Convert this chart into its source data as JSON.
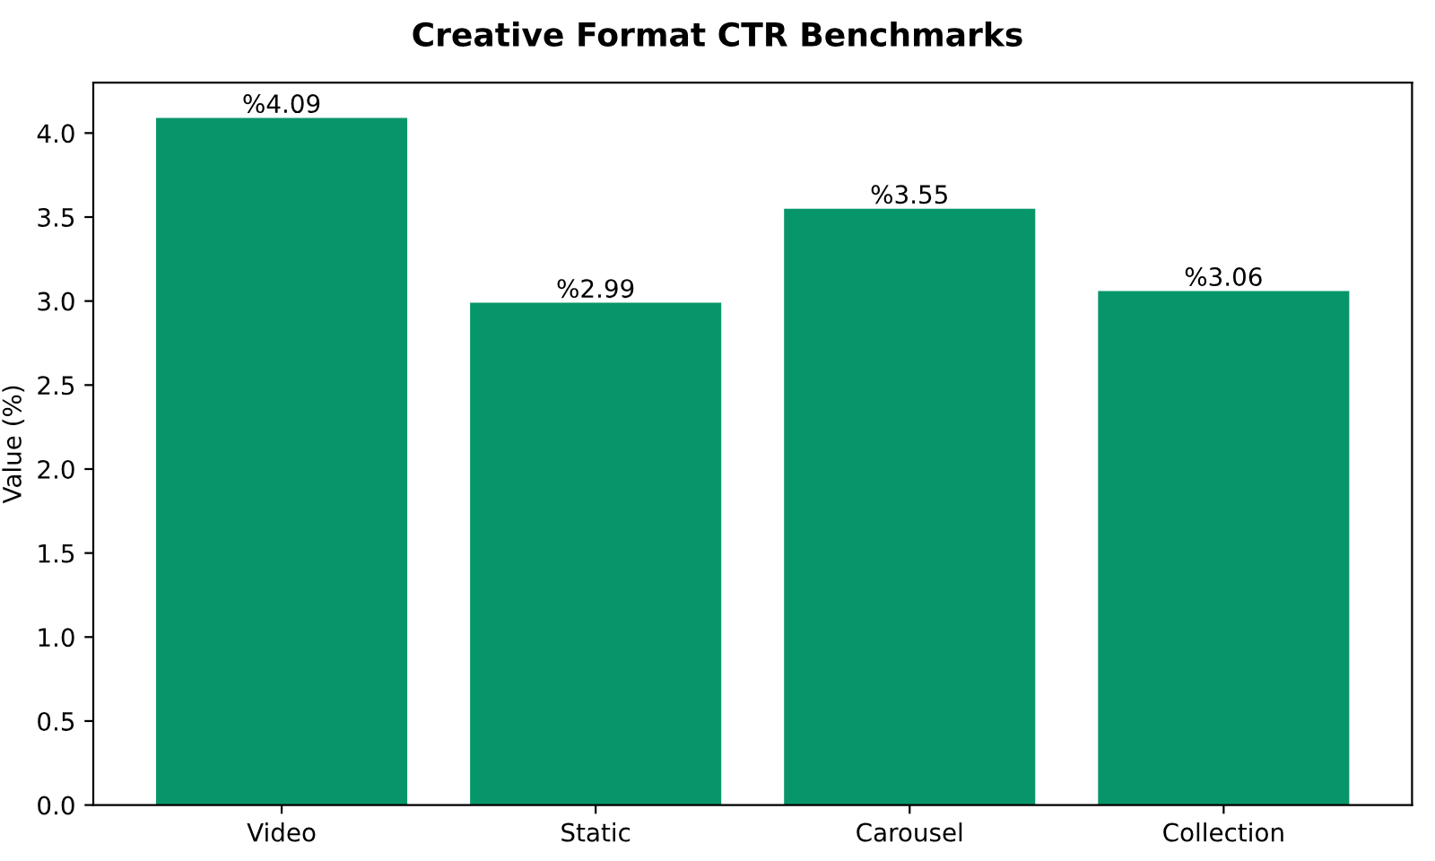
{
  "chart_data": {
    "type": "bar",
    "title": "Creative Format CTR Benchmarks",
    "ylabel": "Value (%)",
    "categories": [
      "Video",
      "Static",
      "Carousel",
      "Collection"
    ],
    "values": [
      4.09,
      2.99,
      3.55,
      3.06
    ],
    "value_labels": [
      "%4.09",
      "%2.99",
      "%3.55",
      "%3.06"
    ],
    "color": "#07966a",
    "ylim": [
      0,
      4.3
    ],
    "yticks": [
      {
        "value": 0,
        "label": "0.0"
      },
      0.5,
      {
        "value": 1,
        "label": "1.0"
      },
      1.5,
      {
        "value": 2,
        "label": "2.0"
      },
      2.5,
      {
        "value": 3,
        "label": "3.0"
      },
      3.5,
      {
        "value": 4,
        "label": "4.0"
      }
    ],
    "grid": false
  }
}
